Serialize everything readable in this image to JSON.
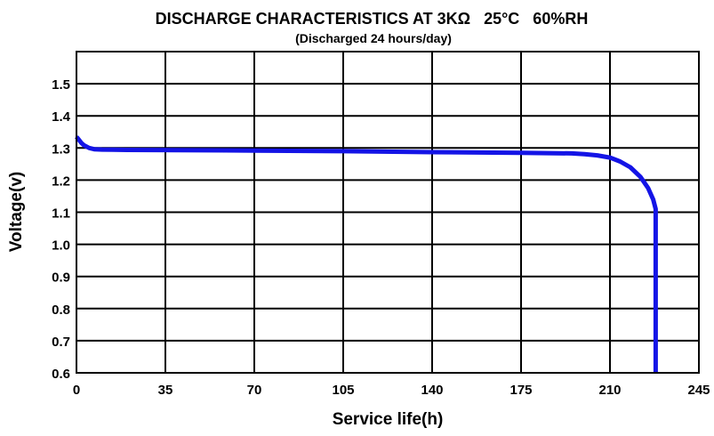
{
  "chart_data": {
    "type": "line",
    "title": "DISCHARGE CHARACTERISTICS AT 3KΩ   25°C   60%RH",
    "subtitle": "(Discharged 24 hours/day)",
    "xlabel": "Service life(h)",
    "ylabel": "Voltage(v)",
    "xlim": [
      0,
      245
    ],
    "ylim": [
      0.6,
      1.6
    ],
    "x_ticks": [
      0,
      35,
      70,
      105,
      140,
      175,
      210,
      245
    ],
    "y_ticks": [
      0.6,
      0.7,
      0.8,
      0.9,
      1.0,
      1.1,
      1.2,
      1.3,
      1.4,
      1.5
    ],
    "y_tick_labels": [
      "0.6",
      "0.7",
      "0.8",
      "0.9",
      "1.0",
      "1.1",
      "1.2",
      "1.3",
      "1.4",
      "1.5"
    ],
    "grid": true,
    "series": [
      {
        "color": "#1414e6",
        "points": [
          [
            0,
            1.335
          ],
          [
            1,
            1.325
          ],
          [
            2,
            1.315
          ],
          [
            3,
            1.308
          ],
          [
            5,
            1.3
          ],
          [
            7,
            1.296
          ],
          [
            10,
            1.295
          ],
          [
            20,
            1.294
          ],
          [
            40,
            1.293
          ],
          [
            70,
            1.292
          ],
          [
            105,
            1.29
          ],
          [
            140,
            1.287
          ],
          [
            175,
            1.285
          ],
          [
            195,
            1.283
          ],
          [
            200,
            1.281
          ],
          [
            205,
            1.277
          ],
          [
            210,
            1.27
          ],
          [
            214,
            1.258
          ],
          [
            218,
            1.24
          ],
          [
            222,
            1.21
          ],
          [
            225,
            1.175
          ],
          [
            227,
            1.14
          ],
          [
            228,
            1.11
          ],
          [
            228,
            0.6
          ]
        ]
      }
    ]
  }
}
